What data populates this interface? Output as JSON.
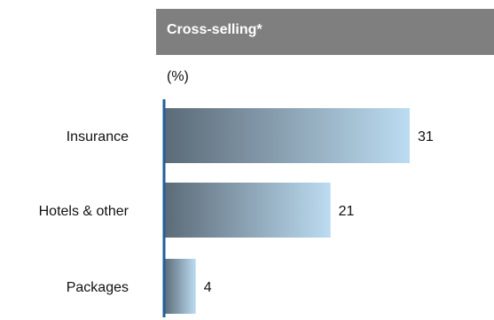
{
  "header": {
    "title": "Cross-selling*"
  },
  "unit": "(%)",
  "colors": {
    "header_bg": "#7f7f7f",
    "bar_dark": "#5b6a77",
    "bar_light": "#bcdcf1",
    "axis": "#1f5f9a"
  },
  "chart_data": {
    "type": "bar",
    "orientation": "horizontal",
    "title": "Cross-selling*",
    "unit_label": "(%)",
    "categories": [
      "Insurance",
      "Hotels & other",
      "Packages"
    ],
    "values": [
      31,
      21,
      4
    ],
    "xlim": [
      0,
      31
    ],
    "grid": false,
    "legend": "none"
  }
}
